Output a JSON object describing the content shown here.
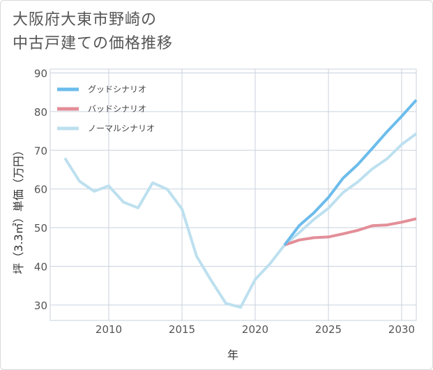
{
  "title_lines": [
    "大阪府大東市野崎の",
    "中古戸建ての価格推移"
  ],
  "chart_data": {
    "type": "line",
    "title": "大阪府大東市野崎の中古戸建ての価格推移",
    "xlabel": "年",
    "ylabel": "坪（3.3㎡）単価（万円）",
    "xlim": [
      2006,
      2031
    ],
    "ylim": [
      26,
      91
    ],
    "xticks": [
      2010,
      2015,
      2020,
      2025,
      2030
    ],
    "yticks": [
      30,
      40,
      50,
      60,
      70,
      80,
      90
    ],
    "grid": true,
    "legend_position": "top-left",
    "series": [
      {
        "name": "グッドシナリオ",
        "color": "#6cbcec",
        "x": [
          2022,
          2023,
          2024,
          2025,
          2026,
          2027,
          2028,
          2029,
          2030,
          2031
        ],
        "y": [
          45.5,
          50.5,
          53.8,
          57.8,
          62.8,
          66.3,
          70.5,
          74.8,
          78.8,
          83.0
        ]
      },
      {
        "name": "バッドシナリオ",
        "color": "#e38e98",
        "x": [
          2022,
          2023,
          2024,
          2025,
          2026,
          2027,
          2028,
          2029,
          2030,
          2031
        ],
        "y": [
          45.5,
          46.8,
          47.4,
          47.6,
          48.4,
          49.3,
          50.5,
          50.7,
          51.4,
          52.3
        ]
      },
      {
        "name": "ノーマルシナリオ",
        "color": "#bde0ef",
        "x": [
          2007,
          2008,
          2009,
          2010,
          2011,
          2012,
          2013,
          2014,
          2015,
          2016,
          2017,
          2018,
          2019,
          2020,
          2021,
          2022,
          2023,
          2024,
          2025,
          2026,
          2027,
          2028,
          2029,
          2030,
          2031
        ],
        "y": [
          68.0,
          62.0,
          59.4,
          60.8,
          56.6,
          55.1,
          61.6,
          59.9,
          54.8,
          42.6,
          36.3,
          30.4,
          29.4,
          36.6,
          40.6,
          45.5,
          48.7,
          52.1,
          55.0,
          59.1,
          61.8,
          65.2,
          67.8,
          71.5,
          74.3
        ]
      }
    ]
  }
}
